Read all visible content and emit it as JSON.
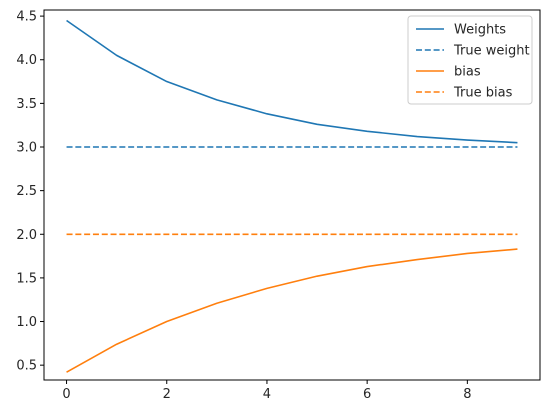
{
  "chart_data": {
    "type": "line",
    "title": "",
    "xlabel": "",
    "ylabel": "",
    "xlim": [
      -0.45,
      9.45
    ],
    "ylim": [
      0.33,
      4.57
    ],
    "x_ticks": [
      0,
      2,
      4,
      6,
      8
    ],
    "x_tick_labels": [
      "0",
      "2",
      "4",
      "6",
      "8"
    ],
    "y_ticks": [
      0.5,
      1.0,
      1.5,
      2.0,
      2.5,
      3.0,
      3.5,
      4.0,
      4.5
    ],
    "y_tick_labels": [
      "0.5",
      "1.0",
      "1.5",
      "2.0",
      "2.5",
      "3.0",
      "3.5",
      "4.0",
      "4.5"
    ],
    "grid": false,
    "legend_position": "top-right",
    "x": [
      0,
      1,
      2,
      3,
      4,
      5,
      6,
      7,
      8,
      9
    ],
    "series": [
      {
        "name": "Weights",
        "color": "#1f77b4",
        "style": "solid",
        "values": [
          4.45,
          4.05,
          3.75,
          3.54,
          3.38,
          3.26,
          3.18,
          3.12,
          3.08,
          3.05
        ]
      },
      {
        "name": "True weight",
        "color": "#1f77b4",
        "style": "dashed",
        "values": [
          3.0,
          3.0,
          3.0,
          3.0,
          3.0,
          3.0,
          3.0,
          3.0,
          3.0,
          3.0
        ]
      },
      {
        "name": "bias",
        "color": "#ff7f0e",
        "style": "solid",
        "values": [
          0.42,
          0.74,
          1.0,
          1.21,
          1.38,
          1.52,
          1.63,
          1.71,
          1.78,
          1.83
        ]
      },
      {
        "name": "True bias",
        "color": "#ff7f0e",
        "style": "dashed",
        "values": [
          2.0,
          2.0,
          2.0,
          2.0,
          2.0,
          2.0,
          2.0,
          2.0,
          2.0,
          2.0
        ]
      }
    ]
  }
}
